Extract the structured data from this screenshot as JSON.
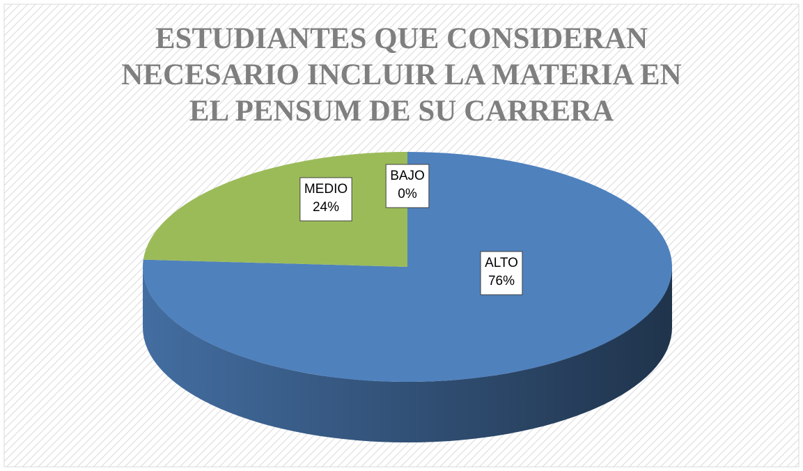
{
  "chart_data": {
    "type": "pie",
    "title": "ESTUDIANTES QUE CONSIDERAN NECESARIO INCLUIR LA MATERIA EN EL PENSUM DE SU CARRERA",
    "categories": [
      "ALTO",
      "MEDIO",
      "BAJO"
    ],
    "values": [
      76,
      24,
      0
    ],
    "value_labels": [
      "76%",
      "24%",
      "0%"
    ],
    "colors": [
      "#4f81bd",
      "#9bbb59",
      "#c0504d"
    ]
  }
}
